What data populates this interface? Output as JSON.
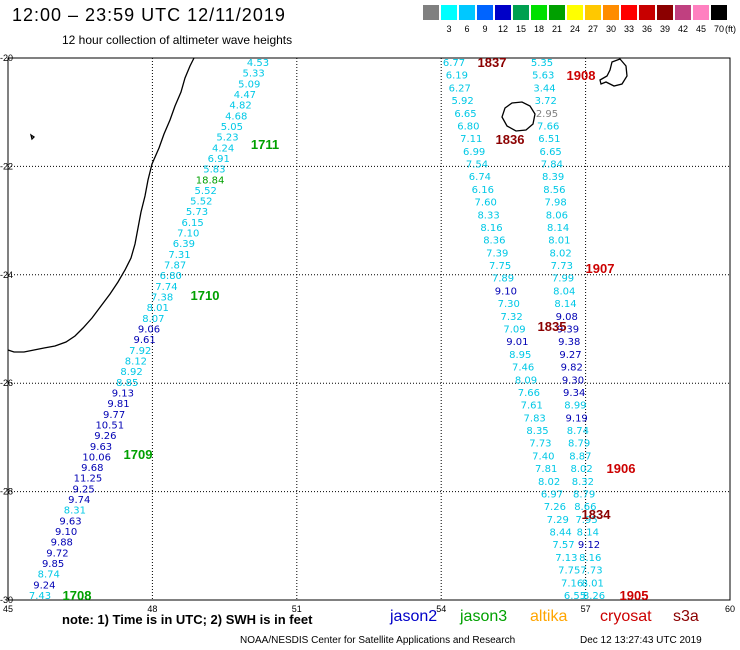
{
  "header": {
    "title": "12:00 – 23:59 UTC 12/11/2019",
    "subtitle": "12 hour collection of altimeter wave heights"
  },
  "color_scale": {
    "unit": "(ft)",
    "bins": [
      {
        "label": "",
        "color": "#808080"
      },
      {
        "label": "3",
        "color": "#00ffff"
      },
      {
        "label": "6",
        "color": "#00c8ff"
      },
      {
        "label": "9",
        "color": "#0064ff"
      },
      {
        "label": "12",
        "color": "#0000c8"
      },
      {
        "label": "15",
        "color": "#00a050"
      },
      {
        "label": "18",
        "color": "#00e000"
      },
      {
        "label": "21",
        "color": "#00a000"
      },
      {
        "label": "24",
        "color": "#ffff00"
      },
      {
        "label": "27",
        "color": "#ffc800"
      },
      {
        "label": "30",
        "color": "#ff8c00"
      },
      {
        "label": "33",
        "color": "#ff0000"
      },
      {
        "label": "36",
        "color": "#c80000"
      },
      {
        "label": "39",
        "color": "#8b0000"
      },
      {
        "label": "42",
        "color": "#c04080"
      },
      {
        "label": "45",
        "color": "#ff80c0"
      },
      {
        "label": "70",
        "color": "#000000"
      }
    ]
  },
  "axes": {
    "lon_labels": [
      "45",
      "48",
      "51",
      "54",
      "57",
      "60"
    ],
    "lat_labels": [
      "-20",
      "-22",
      "-24",
      "-26",
      "-28",
      "-30"
    ]
  },
  "palette": {
    "jason2": "#0000c8",
    "jason3": "#00a000",
    "altika": "#ffa500",
    "cryosat": "#cc0000",
    "s3a": "#8b0000",
    "swh_light": "#00c8e6",
    "swh_mid": "#0000b4",
    "swh_gray": "#808080"
  },
  "tracks": {
    "west": {
      "values": [
        {
          "v": "4.53",
          "c": "light"
        },
        {
          "v": "5.33",
          "c": "light"
        },
        {
          "v": "5.09",
          "c": "light"
        },
        {
          "v": "4.47",
          "c": "light"
        },
        {
          "v": "4.82",
          "c": "light"
        },
        {
          "v": "4.68",
          "c": "light"
        },
        {
          "v": "5.05",
          "c": "light"
        },
        {
          "v": "5.23",
          "c": "light"
        },
        {
          "v": "4.24",
          "c": "light"
        },
        {
          "v": "6.91",
          "c": "light"
        },
        {
          "v": "5.83",
          "c": "light"
        },
        {
          "v": "18.84",
          "c": "green"
        },
        {
          "v": "5.52",
          "c": "light"
        },
        {
          "v": "5.52",
          "c": "light"
        },
        {
          "v": "5.73",
          "c": "light"
        },
        {
          "v": "6.15",
          "c": "light"
        },
        {
          "v": "7.10",
          "c": "light"
        },
        {
          "v": "6.39",
          "c": "light"
        },
        {
          "v": "7.31",
          "c": "light"
        },
        {
          "v": "7.87",
          "c": "light"
        },
        {
          "v": "6.80",
          "c": "light"
        },
        {
          "v": "7.74",
          "c": "light"
        },
        {
          "v": "7.38",
          "c": "light"
        },
        {
          "v": "8.01",
          "c": "light"
        },
        {
          "v": "8.07",
          "c": "light"
        },
        {
          "v": "9.06",
          "c": "mid"
        },
        {
          "v": "9.61",
          "c": "mid"
        },
        {
          "v": "7.92",
          "c": "light"
        },
        {
          "v": "8.12",
          "c": "light"
        },
        {
          "v": "8.92",
          "c": "light"
        },
        {
          "v": "8.85",
          "c": "light"
        },
        {
          "v": "9.13",
          "c": "mid"
        },
        {
          "v": "9.81",
          "c": "mid"
        },
        {
          "v": "9.77",
          "c": "mid"
        },
        {
          "v": "10.51",
          "c": "mid"
        },
        {
          "v": "9.26",
          "c": "mid"
        },
        {
          "v": "9.63",
          "c": "mid"
        },
        {
          "v": "10.06",
          "c": "mid"
        },
        {
          "v": "9.68",
          "c": "mid"
        },
        {
          "v": "11.25",
          "c": "mid"
        },
        {
          "v": "9.25",
          "c": "mid"
        },
        {
          "v": "9.74",
          "c": "mid"
        },
        {
          "v": "8.31",
          "c": "light"
        },
        {
          "v": "9.63",
          "c": "mid"
        },
        {
          "v": "9.10",
          "c": "mid"
        },
        {
          "v": "9.88",
          "c": "mid"
        },
        {
          "v": "9.72",
          "c": "mid"
        },
        {
          "v": "9.85",
          "c": "mid"
        },
        {
          "v": "8.74",
          "c": "light"
        },
        {
          "v": "9.24",
          "c": "mid"
        },
        {
          "v": "7.43",
          "c": "light"
        }
      ],
      "pass_labels": [
        {
          "text": "1711",
          "sat": "jason3"
        },
        {
          "text": "1710",
          "sat": "jason3"
        },
        {
          "text": "1709",
          "sat": "jason3"
        },
        {
          "text": "1708",
          "sat": "jason3"
        }
      ]
    },
    "east_a": {
      "values": [
        {
          "v": "6.77",
          "c": "light"
        },
        {
          "v": "6.19",
          "c": "light"
        },
        {
          "v": "6.27",
          "c": "light"
        },
        {
          "v": "5.92",
          "c": "light"
        },
        {
          "v": "6.65",
          "c": "light"
        },
        {
          "v": "6.80",
          "c": "light"
        },
        {
          "v": "7.11",
          "c": "light"
        },
        {
          "v": "6.99",
          "c": "light"
        },
        {
          "v": "7.54",
          "c": "light"
        },
        {
          "v": "6.74",
          "c": "light"
        },
        {
          "v": "6.16",
          "c": "light"
        },
        {
          "v": "7.60",
          "c": "light"
        },
        {
          "v": "8.33",
          "c": "light"
        },
        {
          "v": "8.16",
          "c": "light"
        },
        {
          "v": "8.36",
          "c": "light"
        },
        {
          "v": "7.39",
          "c": "light"
        },
        {
          "v": "7.75",
          "c": "light"
        },
        {
          "v": "7.89",
          "c": "light"
        },
        {
          "v": "9.10",
          "c": "mid"
        },
        {
          "v": "7.30",
          "c": "light"
        },
        {
          "v": "7.32",
          "c": "light"
        },
        {
          "v": "7.09",
          "c": "light"
        },
        {
          "v": "9.01",
          "c": "mid"
        },
        {
          "v": "8.95",
          "c": "light"
        },
        {
          "v": "7.46",
          "c": "light"
        },
        {
          "v": "8.09",
          "c": "light"
        },
        {
          "v": "7.66",
          "c": "light"
        },
        {
          "v": "7.61",
          "c": "light"
        },
        {
          "v": "7.83",
          "c": "light"
        },
        {
          "v": "8.35",
          "c": "light"
        },
        {
          "v": "7.73",
          "c": "light"
        },
        {
          "v": "7.40",
          "c": "light"
        },
        {
          "v": "7.81",
          "c": "light"
        },
        {
          "v": "8.02",
          "c": "light"
        },
        {
          "v": "6.97",
          "c": "light"
        },
        {
          "v": "7.26",
          "c": "light"
        },
        {
          "v": "7.29",
          "c": "light"
        },
        {
          "v": "8.44",
          "c": "light"
        },
        {
          "v": "7.57",
          "c": "light"
        },
        {
          "v": "7.13",
          "c": "light"
        },
        {
          "v": "7.75",
          "c": "light"
        },
        {
          "v": "7.16",
          "c": "light"
        },
        {
          "v": "6.55",
          "c": "light"
        }
      ],
      "pass_labels": [
        {
          "text": "1837",
          "sat": "s3a"
        },
        {
          "text": "1836",
          "sat": "s3a"
        },
        {
          "text": "1835",
          "sat": "s3a"
        }
      ]
    },
    "east_b": {
      "values": [
        {
          "v": "5.35",
          "c": "light"
        },
        {
          "v": "5.63",
          "c": "light"
        },
        {
          "v": "3.44",
          "c": "light"
        },
        {
          "v": "3.72",
          "c": "light"
        },
        {
          "v": "2.95",
          "c": "gray"
        },
        {
          "v": "7.66",
          "c": "light"
        },
        {
          "v": "6.51",
          "c": "light"
        },
        {
          "v": "6.65",
          "c": "light"
        },
        {
          "v": "7.84",
          "c": "light"
        },
        {
          "v": "8.39",
          "c": "light"
        },
        {
          "v": "8.56",
          "c": "light"
        },
        {
          "v": "7.98",
          "c": "light"
        },
        {
          "v": "8.06",
          "c": "light"
        },
        {
          "v": "8.14",
          "c": "light"
        },
        {
          "v": "8.01",
          "c": "light"
        },
        {
          "v": "8.02",
          "c": "light"
        },
        {
          "v": "7.73",
          "c": "light"
        },
        {
          "v": "7.99",
          "c": "light"
        },
        {
          "v": "8.04",
          "c": "light"
        },
        {
          "v": "8.14",
          "c": "light"
        },
        {
          "v": "9.08",
          "c": "mid"
        },
        {
          "v": "9.39",
          "c": "mid"
        },
        {
          "v": "9.38",
          "c": "mid"
        },
        {
          "v": "9.27",
          "c": "mid"
        },
        {
          "v": "9.82",
          "c": "mid"
        },
        {
          "v": "9.30",
          "c": "mid"
        },
        {
          "v": "9.34",
          "c": "mid"
        },
        {
          "v": "8.99",
          "c": "light"
        },
        {
          "v": "9.19",
          "c": "mid"
        },
        {
          "v": "8.74",
          "c": "light"
        },
        {
          "v": "8.79",
          "c": "light"
        },
        {
          "v": "8.87",
          "c": "light"
        },
        {
          "v": "8.02",
          "c": "light"
        },
        {
          "v": "8.32",
          "c": "light"
        },
        {
          "v": "8.79",
          "c": "light"
        },
        {
          "v": "8.66",
          "c": "light"
        },
        {
          "v": "7.95",
          "c": "light"
        },
        {
          "v": "8.14",
          "c": "light"
        },
        {
          "v": "9.12",
          "c": "mid"
        },
        {
          "v": "8.16",
          "c": "light"
        },
        {
          "v": "7.73",
          "c": "light"
        },
        {
          "v": "8.01",
          "c": "light"
        },
        {
          "v": "8.26",
          "c": "light"
        }
      ],
      "pass_labels": [
        {
          "text": "1908",
          "sat": "cryosat"
        },
        {
          "text": "1907",
          "sat": "cryosat"
        },
        {
          "text": "1906",
          "sat": "cryosat"
        },
        {
          "text": "1834",
          "sat": "s3a"
        },
        {
          "text": "1905",
          "sat": "cryosat"
        }
      ]
    }
  },
  "footer": {
    "note": "note:  1) Time is in UTC;  2) SWH is in feet",
    "legend": [
      {
        "name": "jason2",
        "color": "#0000c8"
      },
      {
        "name": "jason3",
        "color": "#00a000"
      },
      {
        "name": "altika",
        "color": "#ffa500"
      },
      {
        "name": "cryosat",
        "color": "#cc0000"
      },
      {
        "name": "s3a",
        "color": "#8b0000"
      }
    ],
    "credit": "NOAA/NESDIS Center for Satellite Applications and Research",
    "timestamp": "Dec 12 13:27:43 UTC 2019"
  }
}
